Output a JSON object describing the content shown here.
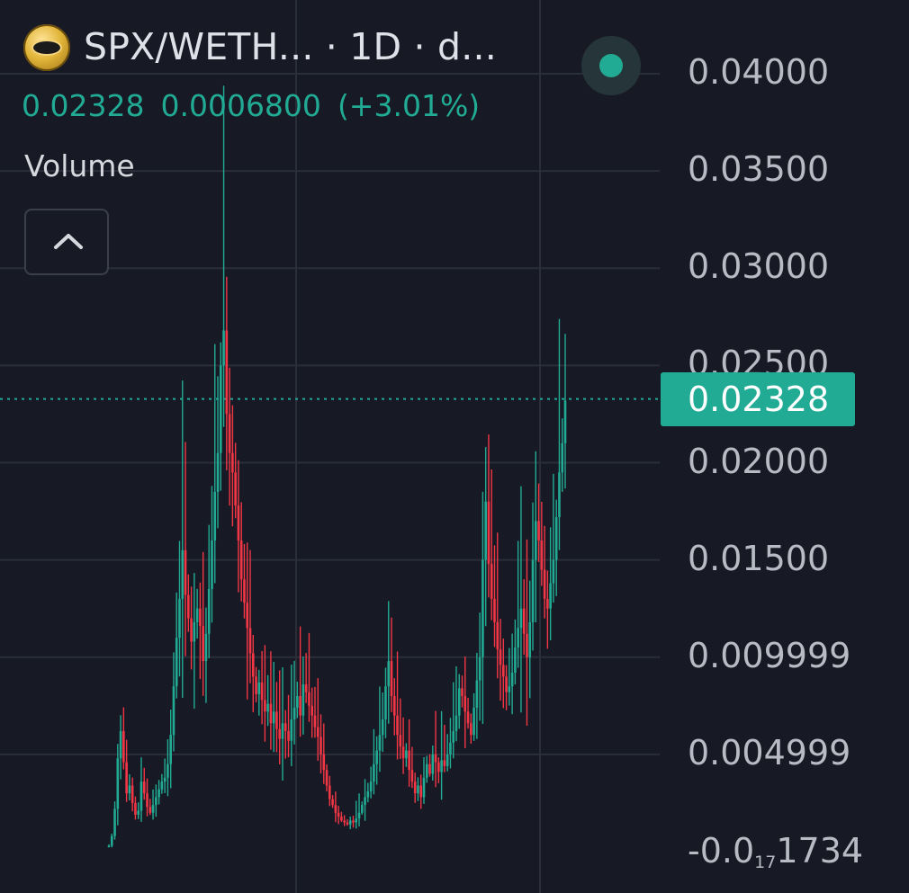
{
  "header": {
    "pair_title": "SPX/WETH... · 1D · d...",
    "price": "0.02328",
    "change_abs": "0.0006800",
    "change_pct": "(+3.01%)",
    "volume_label": "Volume",
    "collapse_icon": "chevron-up-icon"
  },
  "last_price_tag": "0.02328",
  "colors": {
    "background": "#171a24",
    "up": "#22ab94",
    "down": "#f23645",
    "axis_text": "#b8bbc4",
    "grid": "#2a2e39"
  },
  "chart_data": {
    "type": "candlestick",
    "y_axis": {
      "labels": [
        "0.04000",
        "0.03500",
        "0.03000",
        "0.02500",
        "0.02000",
        "0.01500",
        "0.009999",
        "0.004999"
      ],
      "label_values": [
        0.04,
        0.035,
        0.03,
        0.025,
        0.02,
        0.015,
        0.01,
        0.005
      ],
      "bottom_label": {
        "prefix": "-0.0",
        "subscript": "17",
        "suffix": "1734"
      },
      "range": [
        0,
        0.04
      ]
    },
    "last_price": 0.02328,
    "series": [
      {
        "close_trajectory": [
          0.0003,
          0.0008,
          0.0022,
          0.0048,
          0.0062,
          0.0046,
          0.003,
          0.0034,
          0.0025,
          0.0019,
          0.0021,
          0.0036,
          0.003,
          0.0023,
          0.002,
          0.0024,
          0.0028,
          0.0032,
          0.0036,
          0.0038,
          0.0045,
          0.006,
          0.0085,
          0.011,
          0.013,
          0.0155,
          0.0132,
          0.012,
          0.0108,
          0.0118,
          0.0125,
          0.0116,
          0.0098,
          0.0112,
          0.0135,
          0.016,
          0.0185,
          0.0205,
          0.025,
          0.0268,
          0.0225,
          0.0205,
          0.0195,
          0.0178,
          0.016,
          0.014,
          0.0128,
          0.0115,
          0.0102,
          0.009,
          0.0081,
          0.0087,
          0.0078,
          0.0072,
          0.0076,
          0.0066,
          0.0072,
          0.0063,
          0.0058,
          0.0066,
          0.0062,
          0.0057,
          0.0068,
          0.0074,
          0.008,
          0.007,
          0.0086,
          0.0082,
          0.0075,
          0.007,
          0.0064,
          0.0059,
          0.005,
          0.0042,
          0.0034,
          0.0027,
          0.0024,
          0.002,
          0.0018,
          0.0016,
          0.0015,
          0.0014,
          0.0016,
          0.0015,
          0.0017,
          0.002,
          0.0024,
          0.0028,
          0.0031,
          0.0036,
          0.0045,
          0.0052,
          0.006,
          0.0068,
          0.0085,
          0.0098,
          0.008,
          0.007,
          0.006,
          0.0054,
          0.0048,
          0.0052,
          0.0042,
          0.0036,
          0.003,
          0.0034,
          0.0028,
          0.0038,
          0.0045,
          0.004,
          0.005,
          0.0046,
          0.0041,
          0.0047,
          0.0044,
          0.005,
          0.0056,
          0.0062,
          0.007,
          0.0084,
          0.008,
          0.0072,
          0.0066,
          0.006,
          0.0074,
          0.0088,
          0.01,
          0.015,
          0.018,
          0.0148,
          0.013,
          0.0118,
          0.0104,
          0.0096,
          0.009,
          0.0082,
          0.0085,
          0.0092,
          0.0105,
          0.0115,
          0.0125,
          0.0112,
          0.01,
          0.0118,
          0.015,
          0.017,
          0.016,
          0.0145,
          0.013,
          0.0125,
          0.0138,
          0.015,
          0.0172,
          0.0195,
          0.021,
          0.0232
        ]
      }
    ]
  }
}
